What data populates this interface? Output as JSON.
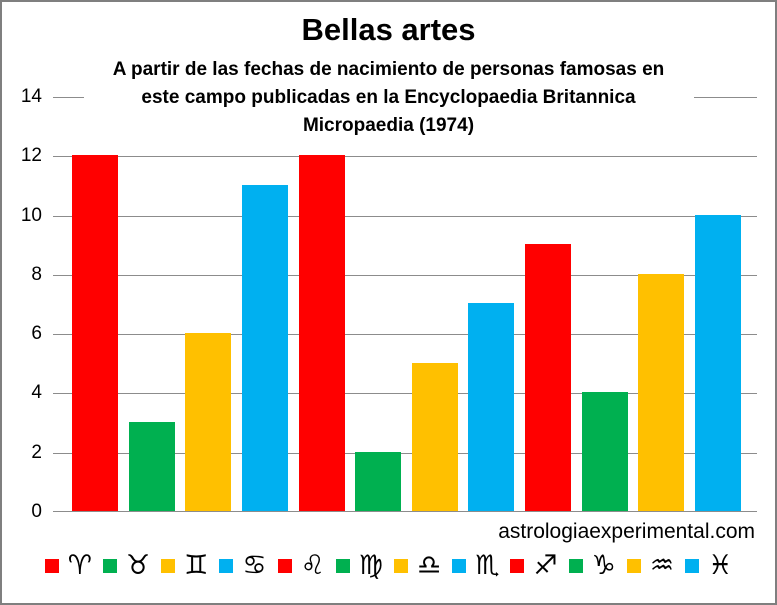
{
  "header": {
    "title": "Bellas artes",
    "subtitle_lines": [
      "A partir de las fechas de nacimiento de personas famosas en",
      "este campo publicadas en la Encyclopaedia Britannica",
      "Micropaedia (1974)"
    ]
  },
  "watermark": "astrologiaexperimental.com",
  "chart_data": {
    "type": "bar",
    "title": "Bellas artes",
    "subtitle": "A partir de las fechas de nacimiento de personas famosas en este campo publicadas en la Encyclopaedia Britannica Micropaedia (1974)",
    "categories": [
      "♈",
      "♉",
      "♊",
      "♋",
      "♌",
      "♍",
      "♎",
      "♏",
      "♐",
      "♑",
      "♒",
      "♓"
    ],
    "values": [
      12,
      3,
      6,
      11,
      12,
      2,
      5,
      7,
      9,
      4,
      8,
      10
    ],
    "legend": [
      {
        "symbol": "♈",
        "name": "aries",
        "color": "#FF0000"
      },
      {
        "symbol": "♉",
        "name": "taurus",
        "color": "#00B050"
      },
      {
        "symbol": "♊",
        "name": "gemini",
        "color": "#FFC000"
      },
      {
        "symbol": "♋",
        "name": "cancer",
        "color": "#00B0F0"
      },
      {
        "symbol": "♌",
        "name": "leo",
        "color": "#FF0000"
      },
      {
        "symbol": "♍",
        "name": "virgo",
        "color": "#00B050"
      },
      {
        "symbol": "♎",
        "name": "libra",
        "color": "#FFC000"
      },
      {
        "symbol": "♏",
        "name": "scorpio",
        "color": "#00B0F0"
      },
      {
        "symbol": "♐",
        "name": "sagittarius",
        "color": "#FF0000"
      },
      {
        "symbol": "♑",
        "name": "capricorn",
        "color": "#00B050"
      },
      {
        "symbol": "♒",
        "name": "aquarius",
        "color": "#FFC000"
      },
      {
        "symbol": "♓",
        "name": "pisces",
        "color": "#00B0F0"
      }
    ],
    "ylim": [
      0,
      14
    ],
    "ytick_step": 2,
    "grid": true,
    "gridline_color": "#8C8C8C",
    "legend_position": "bottom"
  }
}
